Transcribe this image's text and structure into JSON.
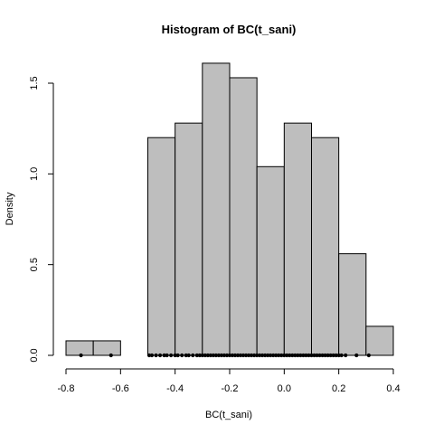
{
  "chart_data": {
    "type": "bar",
    "title": "Histogram of BC(t_sani)",
    "xlabel": "BC(t_sani)",
    "ylabel": "Density",
    "xlim": [
      -0.8,
      0.4
    ],
    "ylim": [
      0,
      1.6
    ],
    "x_ticks": [
      -0.8,
      -0.6,
      -0.4,
      -0.2,
      0.0,
      0.2,
      0.4
    ],
    "x_tick_labels": [
      "-0.8",
      "-0.6",
      "-0.4",
      "-0.2",
      "0.0",
      "0.2",
      "0.4"
    ],
    "y_ticks": [
      0.0,
      0.5,
      1.0,
      1.5
    ],
    "y_tick_labels": [
      "0.0",
      "0.5",
      "1.0",
      "1.5"
    ],
    "bins": [
      {
        "x0": -0.8,
        "x1": -0.7,
        "density": 0.08
      },
      {
        "x0": -0.7,
        "x1": -0.6,
        "density": 0.08
      },
      {
        "x0": -0.6,
        "x1": -0.5,
        "density": 0.0
      },
      {
        "x0": -0.5,
        "x1": -0.4,
        "density": 1.2
      },
      {
        "x0": -0.4,
        "x1": -0.3,
        "density": 1.28
      },
      {
        "x0": -0.3,
        "x1": -0.2,
        "density": 1.61
      },
      {
        "x0": -0.2,
        "x1": -0.1,
        "density": 1.53
      },
      {
        "x0": -0.1,
        "x1": 0.0,
        "density": 1.04
      },
      {
        "x0": 0.0,
        "x1": 0.1,
        "density": 1.28
      },
      {
        "x0": 0.1,
        "x1": 0.2,
        "density": 1.2
      },
      {
        "x0": 0.2,
        "x1": 0.3,
        "density": 0.56
      },
      {
        "x0": 0.3,
        "x1": 0.4,
        "density": 0.16
      }
    ],
    "rug_values": [
      -0.745,
      -0.635,
      -0.495,
      -0.485,
      -0.47,
      -0.455,
      -0.44,
      -0.43,
      -0.415,
      -0.4,
      -0.39,
      -0.375,
      -0.36,
      -0.35,
      -0.335,
      -0.32,
      -0.31,
      -0.3,
      -0.29,
      -0.28,
      -0.27,
      -0.26,
      -0.25,
      -0.24,
      -0.23,
      -0.22,
      -0.21,
      -0.2,
      -0.19,
      -0.18,
      -0.17,
      -0.16,
      -0.15,
      -0.14,
      -0.13,
      -0.12,
      -0.11,
      -0.1,
      -0.09,
      -0.08,
      -0.07,
      -0.06,
      -0.05,
      -0.04,
      -0.03,
      -0.02,
      -0.01,
      0.0,
      0.01,
      0.02,
      0.03,
      0.04,
      0.05,
      0.06,
      0.07,
      0.08,
      0.09,
      0.1,
      0.11,
      0.12,
      0.13,
      0.14,
      0.15,
      0.16,
      0.17,
      0.18,
      0.19,
      0.2,
      0.21,
      0.225,
      0.265,
      0.31
    ]
  }
}
